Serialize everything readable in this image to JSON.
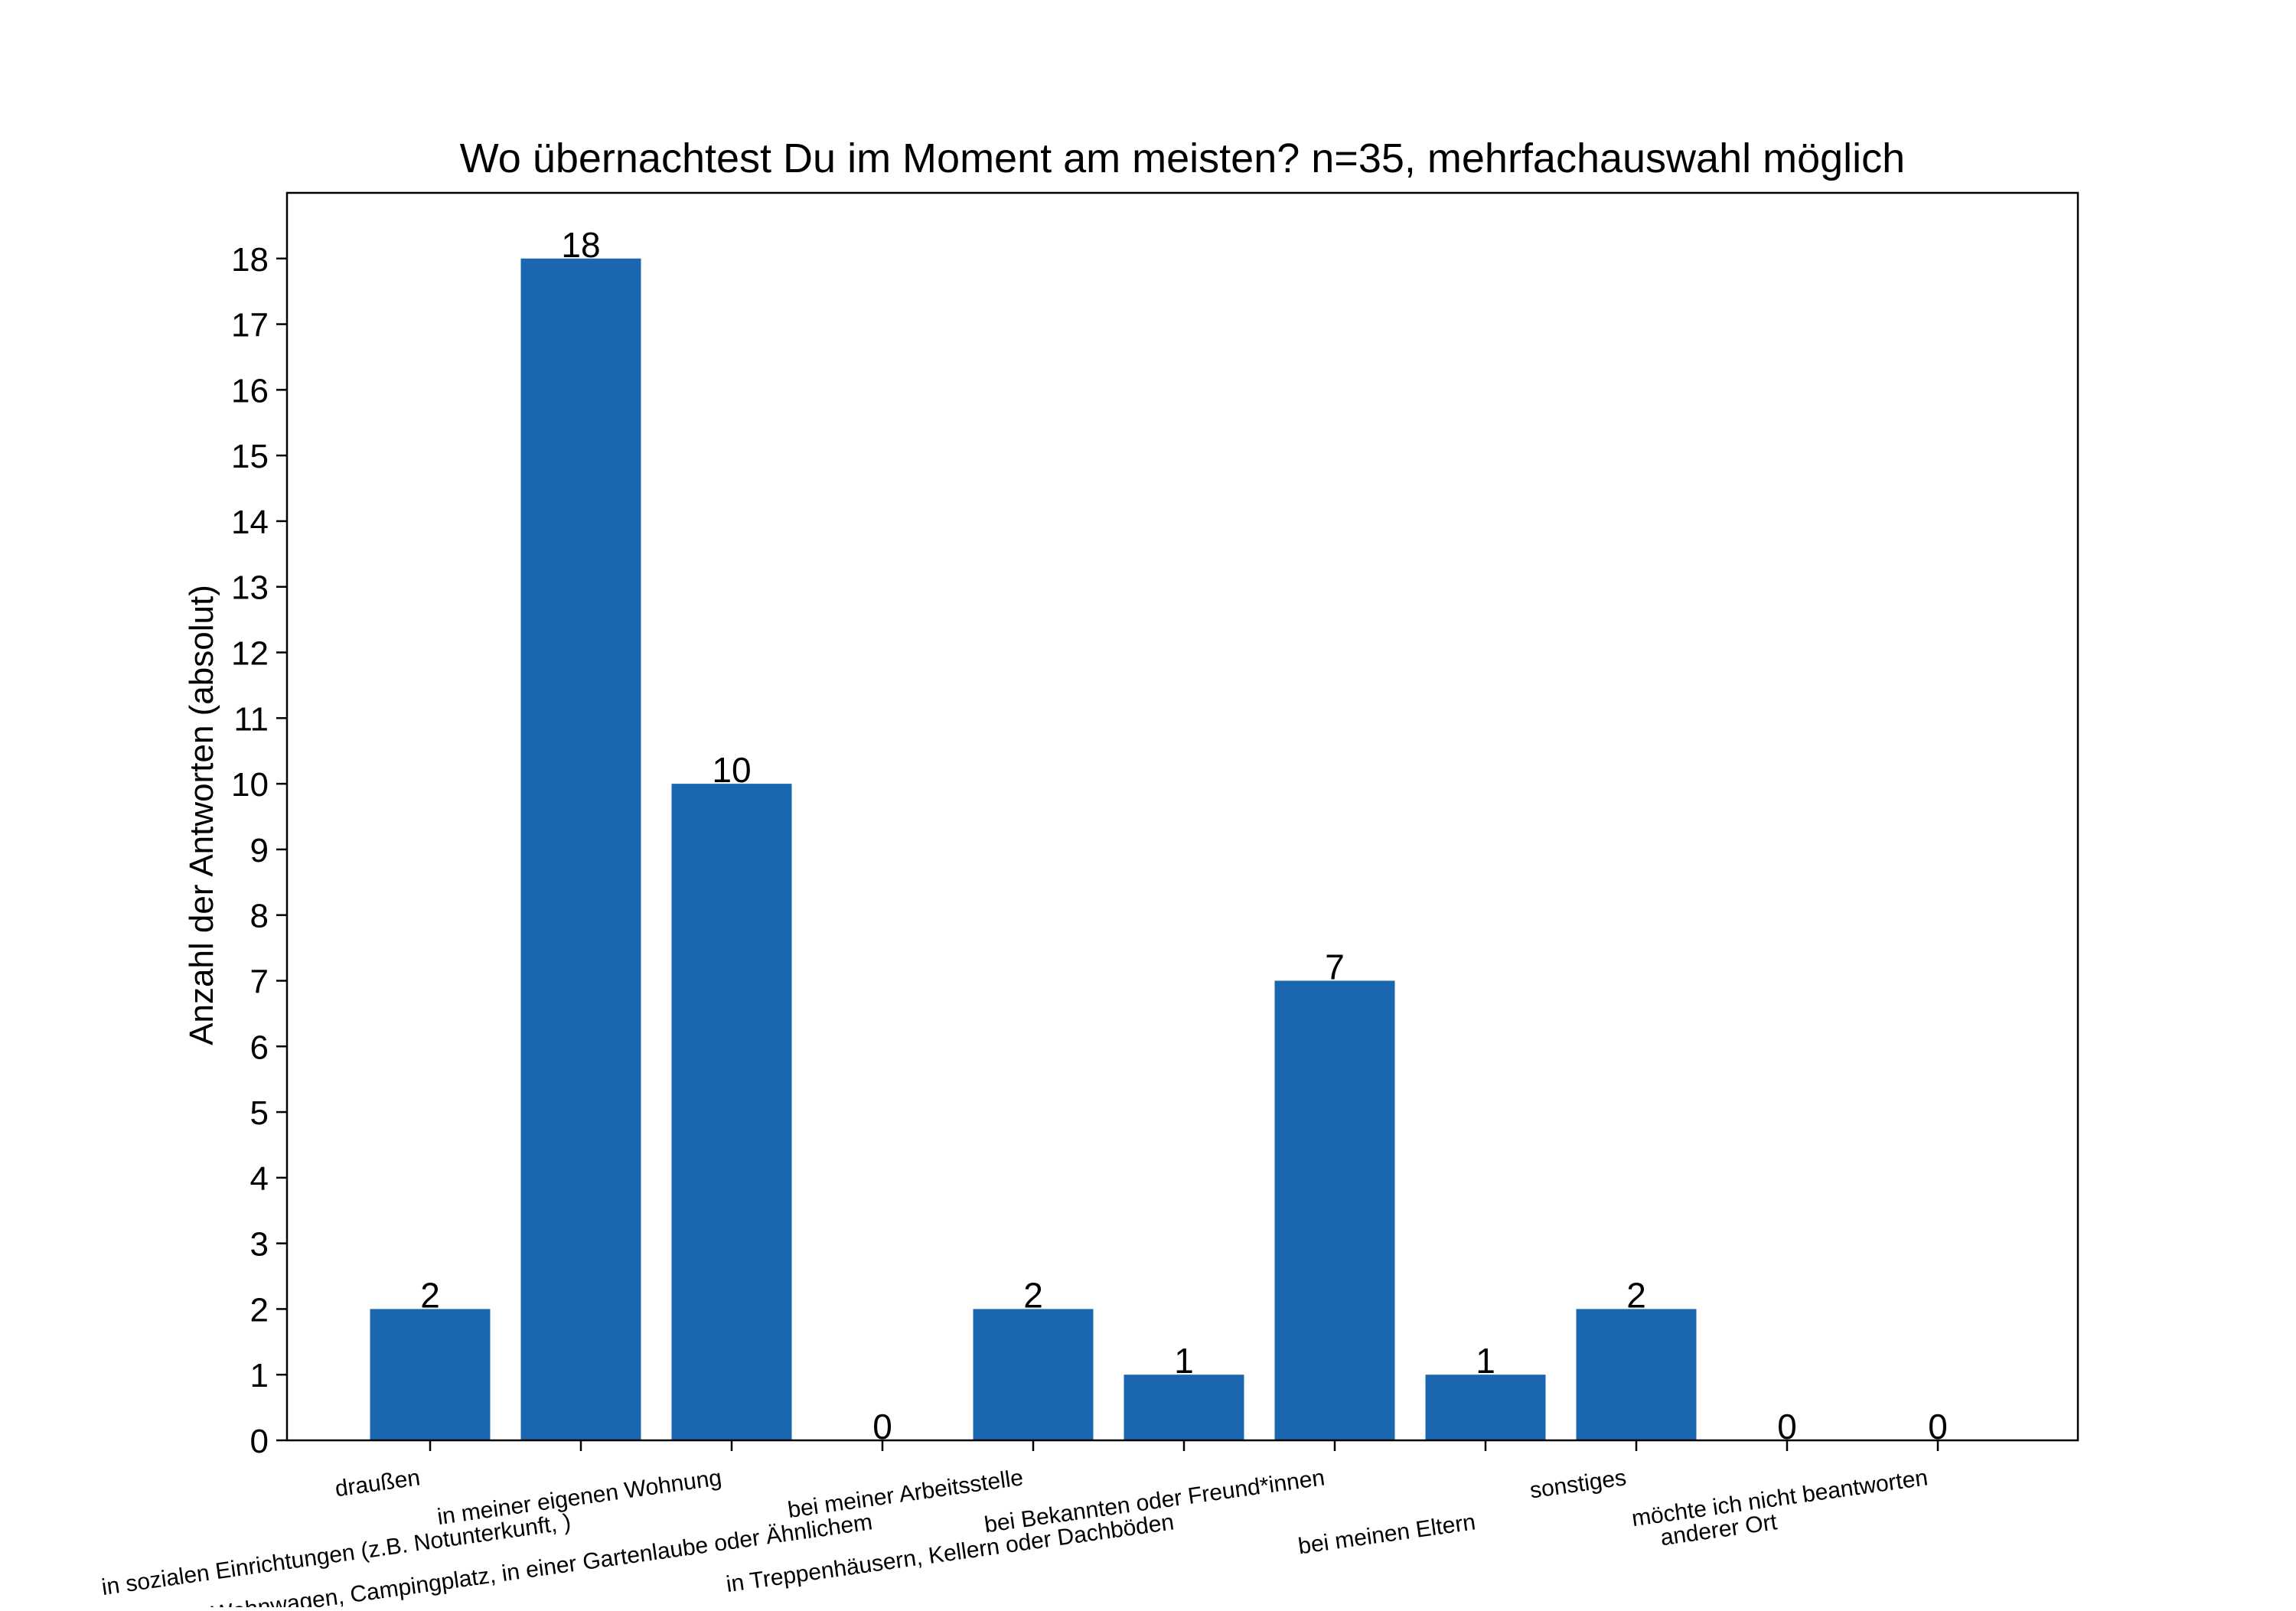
{
  "chart_data": {
    "type": "bar",
    "title": "Wo übernachtest Du im Moment am meisten? n=35, mehrfachauswahl möglich",
    "xlabel": "",
    "ylabel": "Anzahl der Antworten (absolut)",
    "ylim": [
      0,
      19
    ],
    "yticks": [
      0,
      1,
      2,
      3,
      4,
      5,
      6,
      7,
      8,
      9,
      10,
      11,
      12,
      13,
      14,
      15,
      16,
      17,
      18
    ],
    "categories": [
      "draußen",
      "in sozialen Einrichtungen (z.B. Notunterkunft, )",
      "in meiner eigenen Wohnung",
      "im Zelt, Wohnwagen, Campingplatz, in einer Gartenlaube oder Ähnlichem",
      "bei meiner Arbeitsstelle",
      "in Treppenhäusern, Kellern oder Dachböden",
      "bei Bekannten oder Freund*innen",
      "bei meinen Eltern",
      "sonstiges",
      "anderer Ort",
      "möchte ich nicht beantworten"
    ],
    "values": [
      2,
      18,
      10,
      0,
      2,
      1,
      7,
      1,
      2,
      0,
      0
    ],
    "data_labels": [
      "2",
      "18",
      "10",
      "0",
      "2",
      "1",
      "7",
      "1",
      "2",
      "0",
      "0"
    ],
    "bar_color": "#1a67b0",
    "grid": false,
    "legend": "none"
  }
}
